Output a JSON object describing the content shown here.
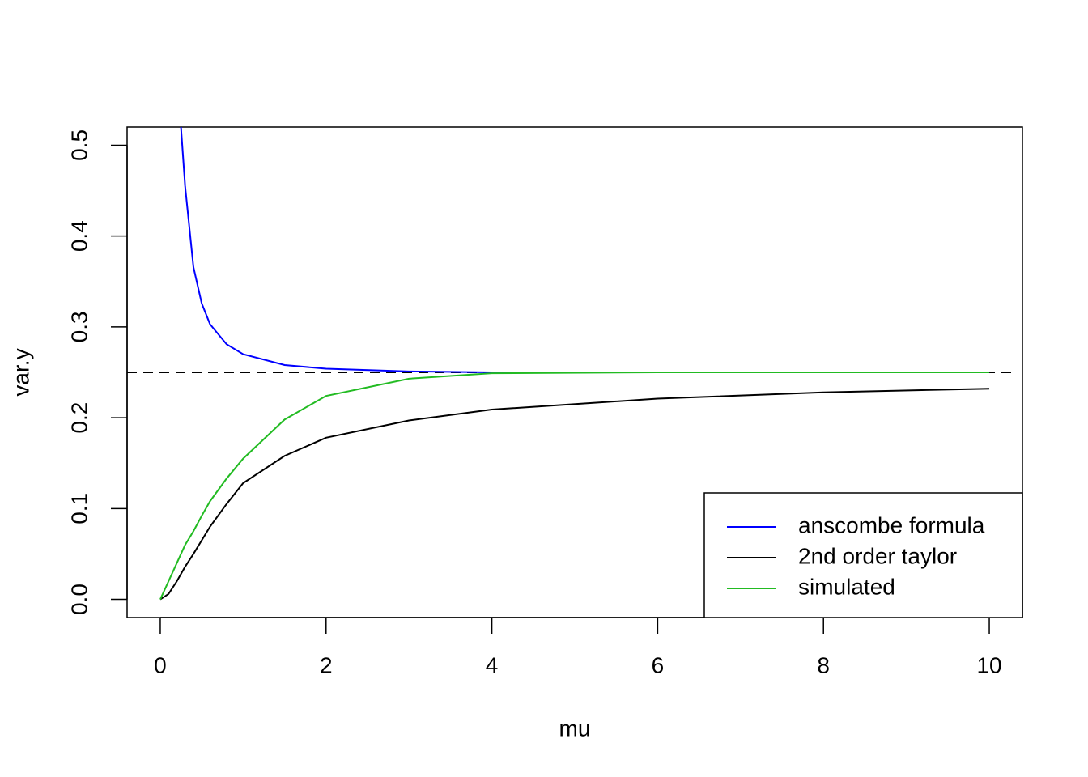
{
  "chart_data": {
    "type": "line",
    "x_label": "mu",
    "y_label": "var.y",
    "x": [
      0,
      0.1,
      0.2,
      0.25,
      0.3,
      0.4,
      0.5,
      0.6,
      0.8,
      1,
      1.5,
      2,
      3,
      4,
      6,
      8,
      10
    ],
    "series": [
      {
        "name": "anscombe formula",
        "color": "#0000ff",
        "values": [
          null,
          null,
          null,
          0.52,
          0.455,
          0.366,
          0.326,
          0.303,
          0.281,
          0.27,
          0.258,
          0.254,
          0.251,
          0.25,
          0.25,
          0.25,
          0.25
        ]
      },
      {
        "name": "2nd order taylor",
        "color": "#000000",
        "values": [
          0,
          0.006,
          0.02,
          0.028,
          0.036,
          0.05,
          0.065,
          0.08,
          0.105,
          0.128,
          0.158,
          0.178,
          0.197,
          0.209,
          0.221,
          0.228,
          0.232
        ]
      },
      {
        "name": "simulated",
        "color": "#22bb22",
        "values": [
          0,
          0.02,
          0.04,
          0.05,
          0.06,
          0.075,
          0.092,
          0.108,
          0.133,
          0.155,
          0.198,
          0.224,
          0.243,
          0.249,
          0.25,
          0.25,
          0.25
        ]
      }
    ],
    "hlines": [
      {
        "value": 0.25,
        "style": "dashed",
        "color": "#000000"
      }
    ],
    "xlim": [
      -0.4,
      10.4
    ],
    "xticks": [
      0,
      2,
      4,
      6,
      8,
      10
    ],
    "ylim": [
      -0.02,
      0.52
    ],
    "yticks": [
      {
        "value": 0,
        "label": "0.0"
      },
      0.1,
      0.2,
      0.3,
      0.4,
      0.5
    ],
    "grid": false,
    "legend": "bottom-right"
  }
}
